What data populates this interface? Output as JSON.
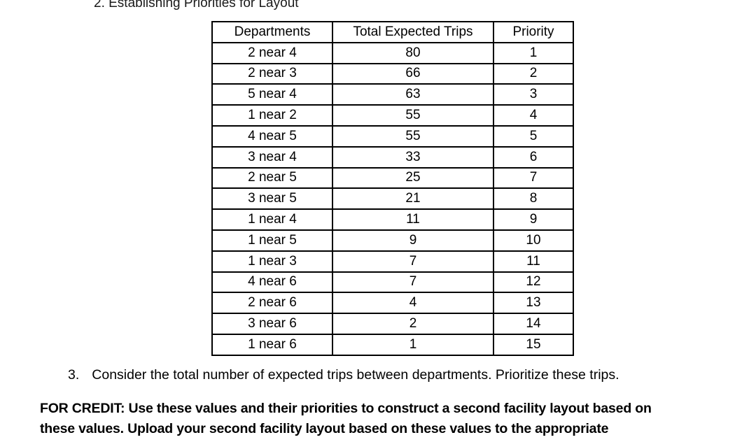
{
  "page": {
    "heading": "2. Establishing Priorities for Layout",
    "item3": {
      "number": "3.",
      "text": "Consider the total number of expected trips between departments. Prioritize these trips."
    },
    "for_credit": {
      "line1": "FOR CREDIT: Use these values and their priorities to construct a second facility layout based on",
      "line2": "these values. Upload your second facility layout based on these values to the appropriate"
    }
  },
  "chart_data": {
    "type": "table",
    "title": "Establishing Priorities for Layout",
    "columns": [
      "Departments",
      "Total Expected Trips",
      "Priority"
    ],
    "rows": [
      [
        "2 near 4",
        80,
        1
      ],
      [
        "2 near 3",
        66,
        2
      ],
      [
        "5 near 4",
        63,
        3
      ],
      [
        "1 near 2",
        55,
        4
      ],
      [
        "4 near 5",
        55,
        5
      ],
      [
        "3 near 4",
        33,
        6
      ],
      [
        "2 near 5",
        25,
        7
      ],
      [
        "3 near 5",
        21,
        8
      ],
      [
        "1 near 4",
        11,
        9
      ],
      [
        "1 near 5",
        9,
        10
      ],
      [
        "1 near 3",
        7,
        11
      ],
      [
        "4 near 6",
        7,
        12
      ],
      [
        "2 near 6",
        4,
        13
      ],
      [
        "3 near 6",
        2,
        14
      ],
      [
        "1 near 6",
        1,
        15
      ]
    ]
  }
}
